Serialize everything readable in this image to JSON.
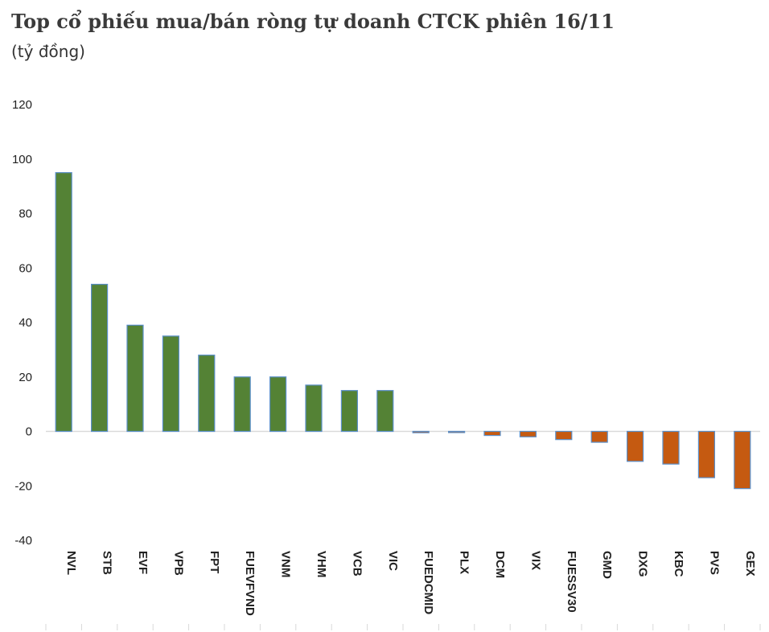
{
  "chart_data": {
    "type": "bar",
    "title": "Top cổ phiếu mua/bán ròng tự doanh CTCK phiên 16/11",
    "subtitle": "(tỷ đồng)",
    "categories": [
      "NVL",
      "STB",
      "EVF",
      "VPB",
      "FPT",
      "FUEVFVND",
      "VNM",
      "VHM",
      "VCB",
      "VIC",
      "FUEDCMID",
      "PLX",
      "DCM",
      "VIX",
      "FUESSV30",
      "GMD",
      "DXG",
      "KBC",
      "PVS",
      "GEX"
    ],
    "values": [
      95,
      54,
      39,
      35,
      28,
      20,
      20,
      17,
      15,
      15,
      -0.5,
      -0.3,
      -1.5,
      -2,
      -3,
      -4,
      -11,
      -12,
      -17,
      -21
    ],
    "ylim": [
      -40,
      120
    ],
    "yticks": [
      -40,
      -20,
      0,
      20,
      40,
      60,
      80,
      100,
      120
    ],
    "grid": false,
    "colors": {
      "positive": "#548235",
      "negative": "#c55a11",
      "edge": "#5b8fc9",
      "axis": "#d9d9d9"
    }
  }
}
